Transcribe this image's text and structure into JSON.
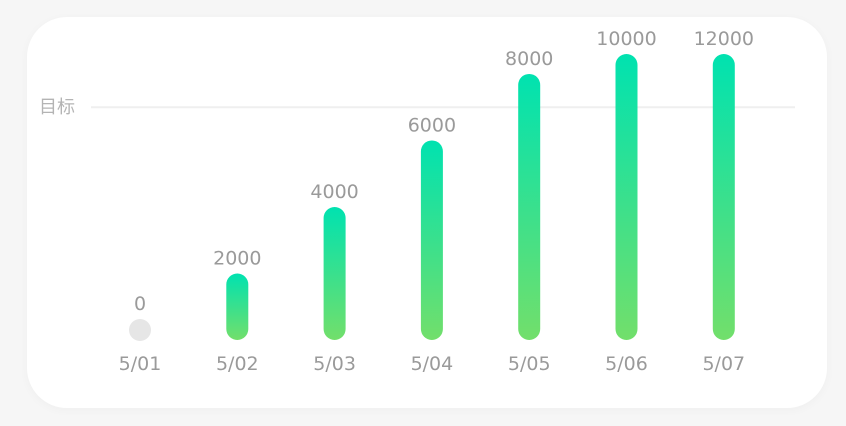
{
  "chart_data": {
    "type": "bar",
    "categories": [
      "5/01",
      "5/02",
      "5/03",
      "5/04",
      "5/05",
      "5/06",
      "5/07"
    ],
    "values": [
      0,
      2000,
      4000,
      6000,
      8000,
      10000,
      12000
    ],
    "value_labels": [
      "0",
      "2000",
      "4000",
      "6000",
      "8000",
      "10000",
      "12000"
    ],
    "goal_label": "目标",
    "goal_value": 7000,
    "ylim": [
      0,
      8600
    ],
    "colors": {
      "bar_top": "#00e2b0",
      "bar_bottom": "#72df6b",
      "zero_marker": "#e6e6e6",
      "goal_line": "#efefef"
    },
    "title": "",
    "xlabel": "",
    "ylabel": ""
  }
}
